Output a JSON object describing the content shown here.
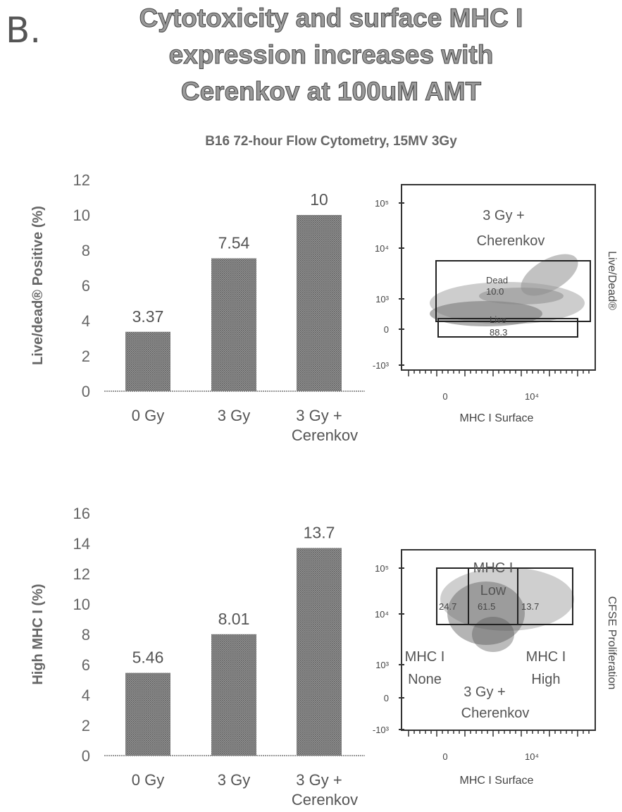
{
  "header": {
    "panel_label": "B.",
    "title_lines": [
      "Cytotoxicity and surface MHC I",
      "expression increases with",
      "Cerenkov at 100uM AMT"
    ],
    "subtitle": "B16 72-hour Flow Cytometry, 15MV 3Gy"
  },
  "chart_data": [
    {
      "type": "bar",
      "categories": [
        "0 Gy",
        "3 Gy",
        "3 Gy +\nCerenkov"
      ],
      "values": [
        3.37,
        7.54,
        10
      ],
      "value_labels": [
        "3.37",
        "7.54",
        "10"
      ],
      "ylabel": "Live/dead® Positive (%)",
      "ylim": [
        0,
        12
      ],
      "yticks": [
        0,
        2,
        4,
        6,
        8,
        10,
        12
      ],
      "xlabel": "",
      "grid": false,
      "bar_color": "#8a8a8a"
    },
    {
      "type": "bar",
      "categories": [
        "0 Gy",
        "3 Gy",
        "3 Gy +\nCerenkov"
      ],
      "values": [
        5.46,
        8.01,
        13.7
      ],
      "value_labels": [
        "5.46",
        "8.01",
        "13.7"
      ],
      "ylabel": "High MHC I (%)",
      "ylim": [
        0,
        16
      ],
      "yticks": [
        0,
        2,
        4,
        6,
        8,
        10,
        12,
        14,
        16
      ],
      "xlabel": "",
      "grid": false,
      "bar_color": "#8a8a8a"
    }
  ],
  "flow_plots": [
    {
      "xlabel": "MHC I Surface",
      "ylabel": "Live/Dead®",
      "y_ticks": [
        "10⁵",
        "10⁴",
        "10³",
        "0",
        "-10³"
      ],
      "x_ticks": [
        "0",
        "10⁴"
      ],
      "sample_label": "3 Gy +\nCherenkov",
      "gates": [
        {
          "name": "Dead",
          "value": "10.0"
        },
        {
          "name": "Live",
          "value": "88.3"
        }
      ]
    },
    {
      "xlabel": "MHC I Surface",
      "ylabel": "CFSE Proliferation",
      "y_ticks": [
        "10⁵",
        "10⁴",
        "10³",
        "0",
        "-10³"
      ],
      "x_ticks": [
        "0",
        "10⁴"
      ],
      "sample_label": "3 Gy +\nCherenkov",
      "gates": [
        {
          "name": "MHC I\nNone",
          "value": "24.7"
        },
        {
          "name": "MHC I\nLow",
          "value": "61.5"
        },
        {
          "name": "MHC I\nHigh",
          "value": "13.7"
        }
      ]
    }
  ]
}
